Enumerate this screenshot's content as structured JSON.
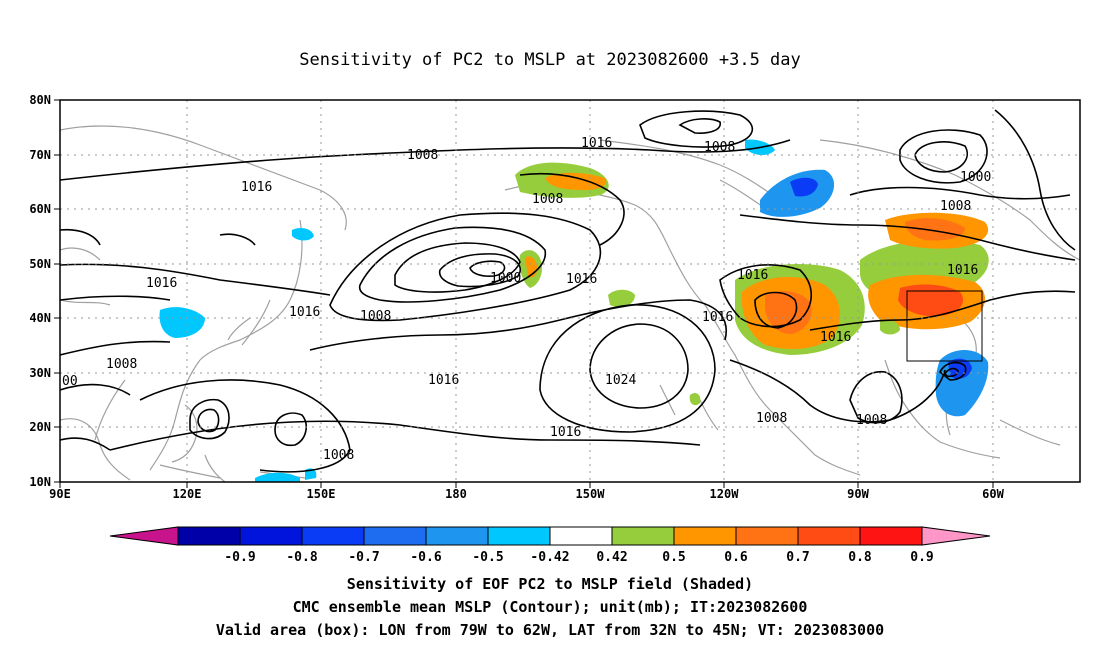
{
  "title": "Sensitivity of PC2 to MSLP at 2023082600 +3.5 day",
  "lat_labels": [
    "80N",
    "70N",
    "60N",
    "50N",
    "40N",
    "30N",
    "20N",
    "10N"
  ],
  "lon_labels": [
    "90E",
    "120E",
    "150E",
    "180",
    "150W",
    "120W",
    "90W",
    "60W"
  ],
  "contour_labels": [
    "1008",
    "1016",
    "1008",
    "1016",
    "1008",
    "1000",
    "1008",
    "1016",
    "1016",
    "1016",
    "1008",
    "1008",
    "1000",
    "1016",
    "1016",
    "1024",
    "1016",
    "1016",
    "1016",
    "1008",
    "1008",
    "1008",
    "00"
  ],
  "colorbar": {
    "labels": [
      "-0.9",
      "-0.8",
      "-0.7",
      "-0.6",
      "-0.5",
      "-0.42",
      "0.42",
      "0.5",
      "0.6",
      "0.7",
      "0.8",
      "0.9"
    ],
    "colors": [
      "#0000a8",
      "#0014dc",
      "#0a3cf5",
      "#1e6cf0",
      "#1e96f0",
      "#00c8ff",
      "#ffffff",
      "#96cd3c",
      "#ff9600",
      "#ff7314",
      "#ff4b14",
      "#ff1414"
    ],
    "under_color": "#c8148c",
    "over_color": "#ff96c8"
  },
  "captions": {
    "line1": "Sensitivity of EOF PC2 to MSLP field (Shaded)",
    "line2": "CMC ensemble mean MSLP (Contour); unit(mb); IT:2023082600",
    "line3": "Valid area (box): LON from 79W to 62W, LAT from 32N to 45N; VT: 2023083000"
  }
}
